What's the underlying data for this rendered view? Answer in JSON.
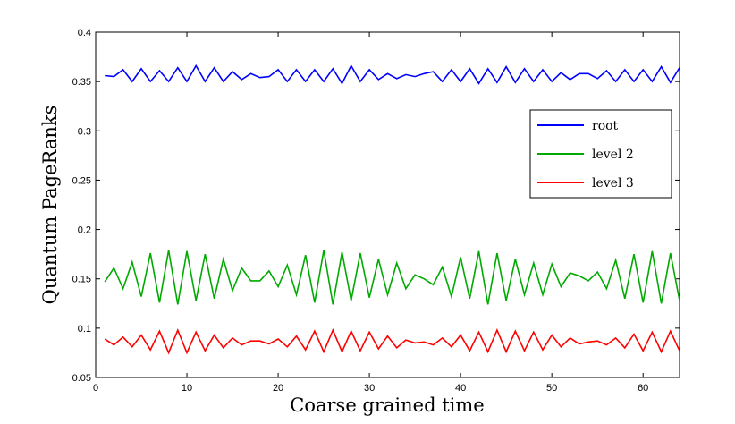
{
  "chart_data": {
    "type": "line",
    "title": "",
    "xlabel": "Coarse grained time",
    "ylabel": "Quantum PageRanks",
    "xlim": [
      0,
      64
    ],
    "ylim": [
      0.05,
      0.4
    ],
    "xticks": [
      0,
      10,
      20,
      30,
      40,
      50,
      60
    ],
    "yticks": [
      0.05,
      0.1,
      0.15,
      0.2,
      0.25,
      0.3,
      0.35,
      0.4
    ],
    "xtick_labels": [
      "0",
      "10",
      "20",
      "30",
      "40",
      "50",
      "60"
    ],
    "ytick_labels": [
      "0.05",
      "0.1",
      "0.15",
      "0.2",
      "0.25",
      "0.3",
      "0.35",
      "0.4"
    ],
    "legend_position": "right",
    "x": [
      1,
      2,
      3,
      4,
      5,
      6,
      7,
      8,
      9,
      10,
      11,
      12,
      13,
      14,
      15,
      16,
      17,
      18,
      19,
      20,
      21,
      22,
      23,
      24,
      25,
      26,
      27,
      28,
      29,
      30,
      31,
      32,
      33,
      34,
      35,
      36,
      37,
      38,
      39,
      40,
      41,
      42,
      43,
      44,
      45,
      46,
      47,
      48,
      49,
      50,
      51,
      52,
      53,
      54,
      55,
      56,
      57,
      58,
      59,
      60,
      61,
      62,
      63,
      64
    ],
    "series": [
      {
        "name": "root",
        "color": "#0000ff",
        "values": [
          0.356,
          0.355,
          0.362,
          0.35,
          0.363,
          0.35,
          0.361,
          0.35,
          0.364,
          0.35,
          0.366,
          0.35,
          0.364,
          0.35,
          0.36,
          0.352,
          0.358,
          0.354,
          0.355,
          0.362,
          0.35,
          0.362,
          0.35,
          0.362,
          0.35,
          0.363,
          0.348,
          0.366,
          0.35,
          0.362,
          0.352,
          0.358,
          0.353,
          0.357,
          0.355,
          0.358,
          0.36,
          0.35,
          0.362,
          0.35,
          0.363,
          0.348,
          0.363,
          0.349,
          0.365,
          0.349,
          0.363,
          0.35,
          0.362,
          0.35,
          0.359,
          0.352,
          0.358,
          0.358,
          0.353,
          0.361,
          0.35,
          0.362,
          0.35,
          0.362,
          0.35,
          0.365,
          0.349,
          0.364
        ]
      },
      {
        "name": "level 2",
        "color": "#00aa00",
        "values": [
          0.147,
          0.161,
          0.14,
          0.167,
          0.132,
          0.176,
          0.126,
          0.179,
          0.124,
          0.178,
          0.128,
          0.175,
          0.13,
          0.17,
          0.138,
          0.161,
          0.148,
          0.148,
          0.158,
          0.142,
          0.164,
          0.134,
          0.174,
          0.126,
          0.179,
          0.124,
          0.177,
          0.128,
          0.176,
          0.131,
          0.17,
          0.134,
          0.166,
          0.14,
          0.154,
          0.15,
          0.144,
          0.162,
          0.132,
          0.172,
          0.13,
          0.178,
          0.124,
          0.176,
          0.128,
          0.17,
          0.134,
          0.166,
          0.134,
          0.165,
          0.142,
          0.156,
          0.153,
          0.148,
          0.157,
          0.14,
          0.169,
          0.13,
          0.175,
          0.126,
          0.178,
          0.125,
          0.176,
          0.128
        ]
      },
      {
        "name": "level 3",
        "color": "#ff0000",
        "values": [
          0.089,
          0.083,
          0.091,
          0.081,
          0.093,
          0.078,
          0.097,
          0.075,
          0.098,
          0.075,
          0.096,
          0.077,
          0.093,
          0.08,
          0.09,
          0.083,
          0.087,
          0.087,
          0.084,
          0.089,
          0.081,
          0.092,
          0.078,
          0.097,
          0.076,
          0.098,
          0.076,
          0.097,
          0.077,
          0.096,
          0.079,
          0.092,
          0.08,
          0.088,
          0.085,
          0.086,
          0.083,
          0.09,
          0.081,
          0.093,
          0.077,
          0.096,
          0.076,
          0.098,
          0.076,
          0.097,
          0.077,
          0.096,
          0.078,
          0.093,
          0.081,
          0.09,
          0.084,
          0.086,
          0.087,
          0.083,
          0.09,
          0.08,
          0.094,
          0.077,
          0.096,
          0.076,
          0.097,
          0.077
        ]
      }
    ]
  }
}
